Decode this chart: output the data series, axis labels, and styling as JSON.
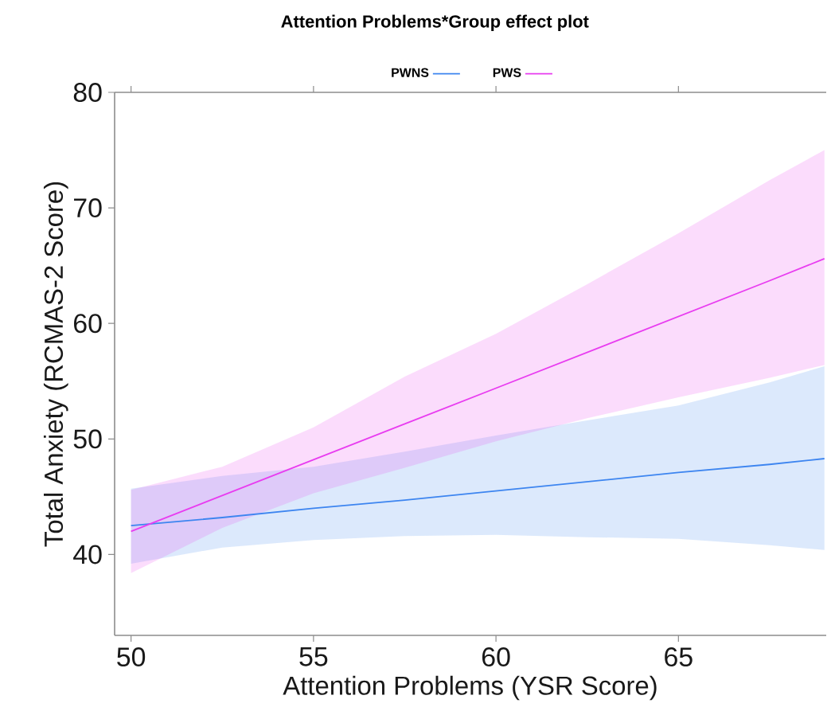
{
  "chart_data": {
    "type": "line",
    "title": "Attention Problems*Group effect plot",
    "xlabel": "Attention Problems (YSR Score)",
    "ylabel": "Total Anxiety (RCMAS-2 Score)",
    "x": [
      50,
      52.5,
      55,
      57.5,
      60,
      62.5,
      65,
      67.5,
      69
    ],
    "series": [
      {
        "name": "PWNS",
        "color": "#3d85f0",
        "values": [
          42.5,
          43.2,
          44.0,
          44.7,
          45.5,
          46.3,
          47.1,
          47.8,
          48.3
        ],
        "lower": [
          39.2,
          40.6,
          41.25,
          41.6,
          41.7,
          41.5,
          41.35,
          40.8,
          40.4
        ],
        "upper": [
          45.7,
          46.8,
          47.6,
          48.9,
          50.3,
          51.6,
          52.9,
          54.9,
          56.3
        ]
      },
      {
        "name": "PWS",
        "color": "#e83cf0",
        "values": [
          42.0,
          45.1,
          48.2,
          51.3,
          54.4,
          57.5,
          60.6,
          63.7,
          65.6
        ],
        "lower": [
          38.4,
          42.3,
          45.3,
          47.5,
          49.8,
          51.8,
          53.6,
          55.3,
          56.4
        ],
        "upper": [
          45.6,
          47.6,
          51.0,
          55.4,
          59.1,
          63.4,
          67.8,
          72.4,
          75.0
        ]
      }
    ],
    "xlim": [
      49.55,
      69.05
    ],
    "ylim": [
      33,
      80
    ],
    "xticks": [
      50,
      55,
      60,
      65
    ],
    "yticks": [
      40,
      50,
      60,
      70,
      80
    ],
    "legend": "top"
  }
}
